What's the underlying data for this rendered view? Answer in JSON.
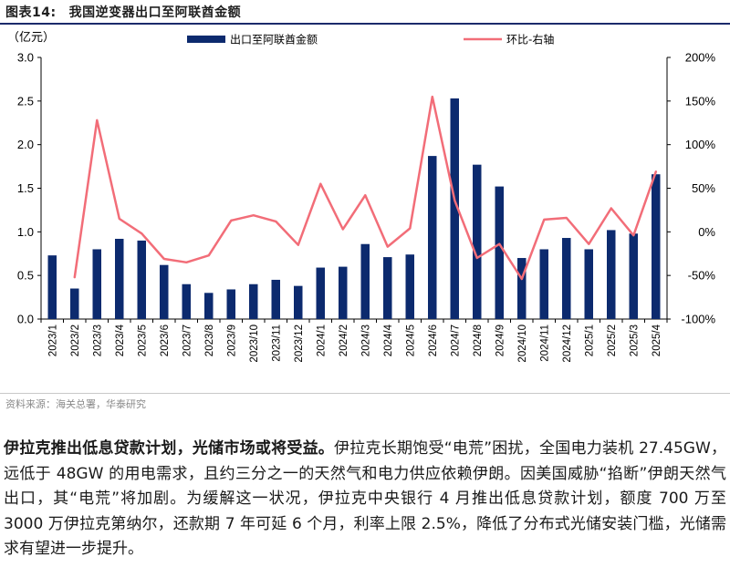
{
  "figure": {
    "label": "图表14:",
    "title": "我国逆变器出口至阿联酋金额"
  },
  "source": "资料来源：海关总署，华泰研究",
  "paragraph": {
    "lead": "伊拉克推出低息贷款计划，光储市场或将受益。",
    "body": "伊拉克长期饱受“电荒”困扰，全国电力装机 27.45GW，远低于 48GW 的用电需求，且约三分之一的天然气和电力供应依赖伊朗。因美国威胁“掐断”伊朗天然气出口，其“电荒”将加剧。为缓解这一状况，伊拉克中央银行 4 月推出低息贷款计划，额度 700 万至 3000 万伊拉克第纳尔，还款期 7 年可延 6 个月，利率上限 2.5%，降低了分布式光储安装门槛，光储需求有望进一步提升。"
  },
  "chart_data": {
    "type": "bar+line",
    "title": "我国逆变器出口至阿联酋金额",
    "unit_label": "（亿元）",
    "categories": [
      "2023/1",
      "2023/2",
      "2023/3",
      "2023/4",
      "2023/5",
      "2023/6",
      "2023/7",
      "2023/8",
      "2023/9",
      "2023/10",
      "2023/11",
      "2023/12",
      "2024/1",
      "2024/2",
      "2024/3",
      "2024/4",
      "2024/5",
      "2024/6",
      "2024/7",
      "2024/8",
      "2024/9",
      "2024/10",
      "2024/11",
      "2024/12",
      "2025/1",
      "2025/2",
      "2025/3",
      "2025/4"
    ],
    "series": [
      {
        "name": "出口至阿联酋金额",
        "kind": "bar",
        "axis": "left",
        "color": "#0c2a6e",
        "values": [
          0.73,
          0.35,
          0.8,
          0.92,
          0.9,
          0.62,
          0.4,
          0.3,
          0.34,
          0.4,
          0.45,
          0.38,
          0.59,
          0.6,
          0.86,
          0.71,
          0.74,
          1.87,
          2.53,
          1.77,
          1.52,
          0.7,
          0.8,
          0.93,
          0.8,
          1.02,
          0.98,
          1.66
        ]
      },
      {
        "name": "环比-右轴",
        "kind": "line",
        "axis": "right",
        "color": "#f26d78",
        "values": [
          null,
          -52,
          128,
          15,
          -2,
          -31,
          -35,
          -27,
          13,
          19,
          12,
          -15,
          55,
          3,
          42,
          -17,
          4,
          155,
          36,
          -30,
          -14,
          -54,
          14,
          16,
          -14,
          27,
          -4,
          69
        ]
      }
    ],
    "y_left": {
      "min": 0,
      "max": 3.0,
      "ticks": [
        "0.0",
        "0.5",
        "1.0",
        "1.5",
        "2.0",
        "2.5",
        "3.0"
      ],
      "tick_values": [
        0,
        0.5,
        1.0,
        1.5,
        2.0,
        2.5,
        3.0
      ]
    },
    "y_right": {
      "min": -100,
      "max": 200,
      "ticks": [
        "-100%",
        "-50%",
        "0%",
        "50%",
        "100%",
        "150%",
        "200%"
      ],
      "tick_values": [
        -100,
        -50,
        0,
        50,
        100,
        150,
        200
      ]
    },
    "legend_position": "top",
    "grid": false
  }
}
